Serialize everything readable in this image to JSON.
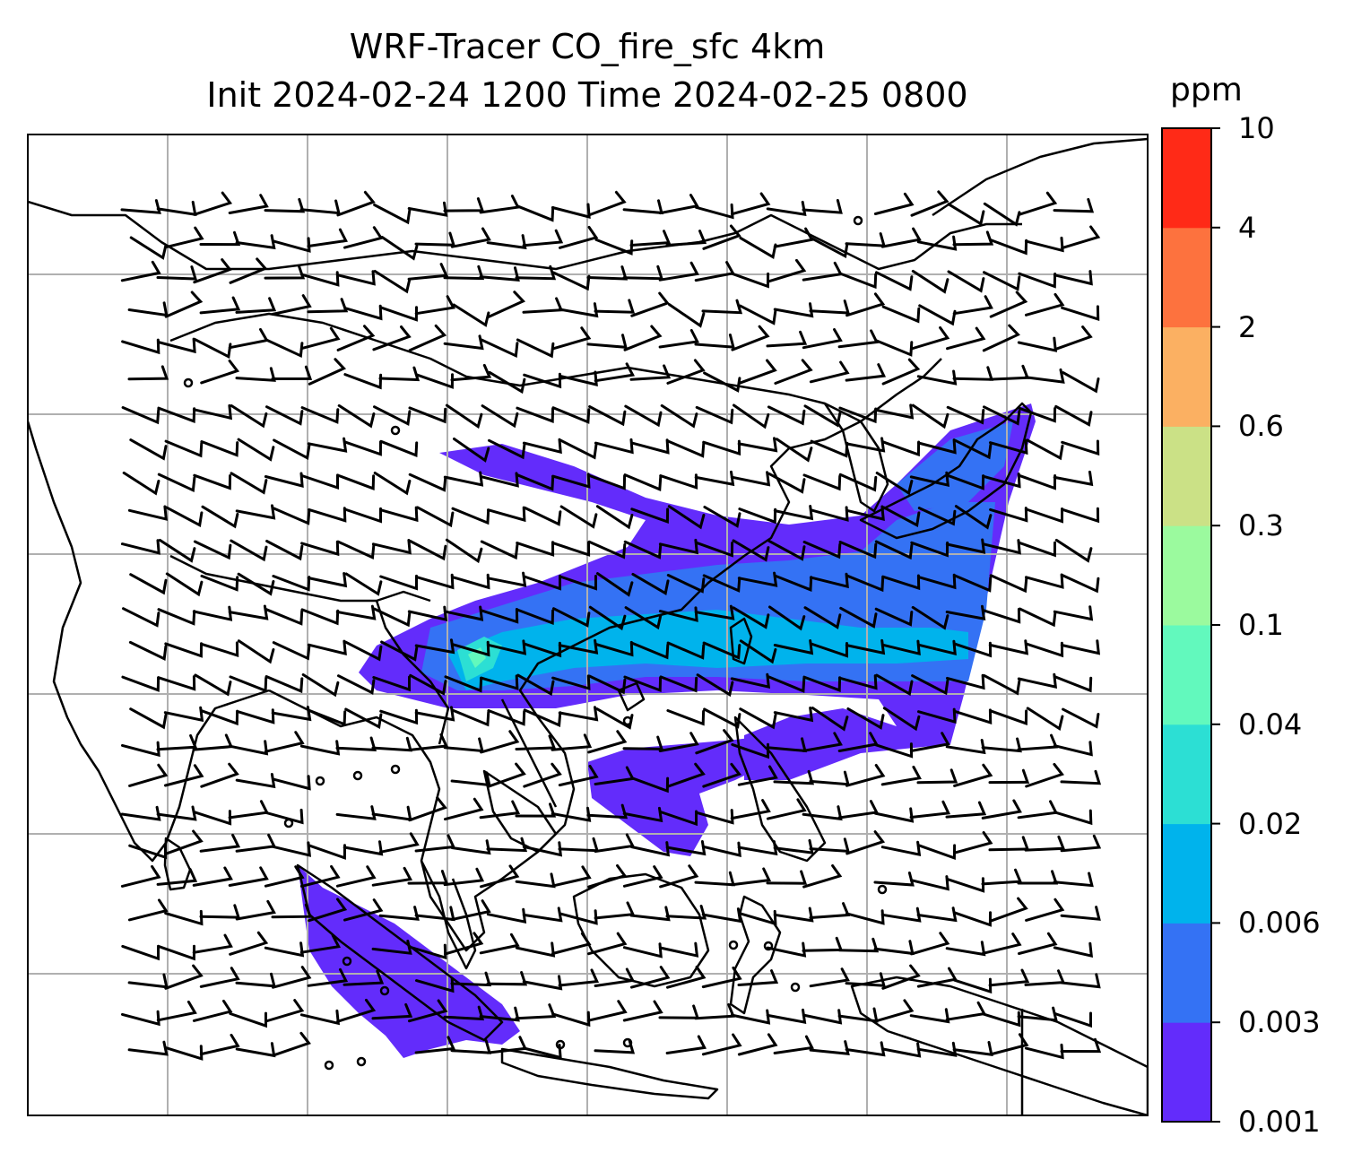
{
  "title_line1": "WRF-Tracer CO_fire_sfc 4km",
  "title_line2": "Init 2024-02-24 1200 Time 2024-02-25 0800",
  "colorbar": {
    "unit": "ppm",
    "levels": [
      "0.001",
      "0.003",
      "0.006",
      "0.02",
      "0.04",
      "0.1",
      "0.3",
      "0.6",
      "2",
      "4",
      "10"
    ],
    "colors": [
      "#632cfb",
      "#3472f4",
      "#00b3ec",
      "#2cdfd4",
      "#62f9bd",
      "#9bfa9e",
      "#cbe186",
      "#fbb062",
      "#fd723e",
      "#ff2a17"
    ]
  },
  "map": {
    "frame_color": "#000000",
    "gridline_color": "#b0b0b0",
    "coastline_color": "#000000",
    "wind_barb_color": "#000000",
    "field": "CO_fire_sfc"
  }
}
